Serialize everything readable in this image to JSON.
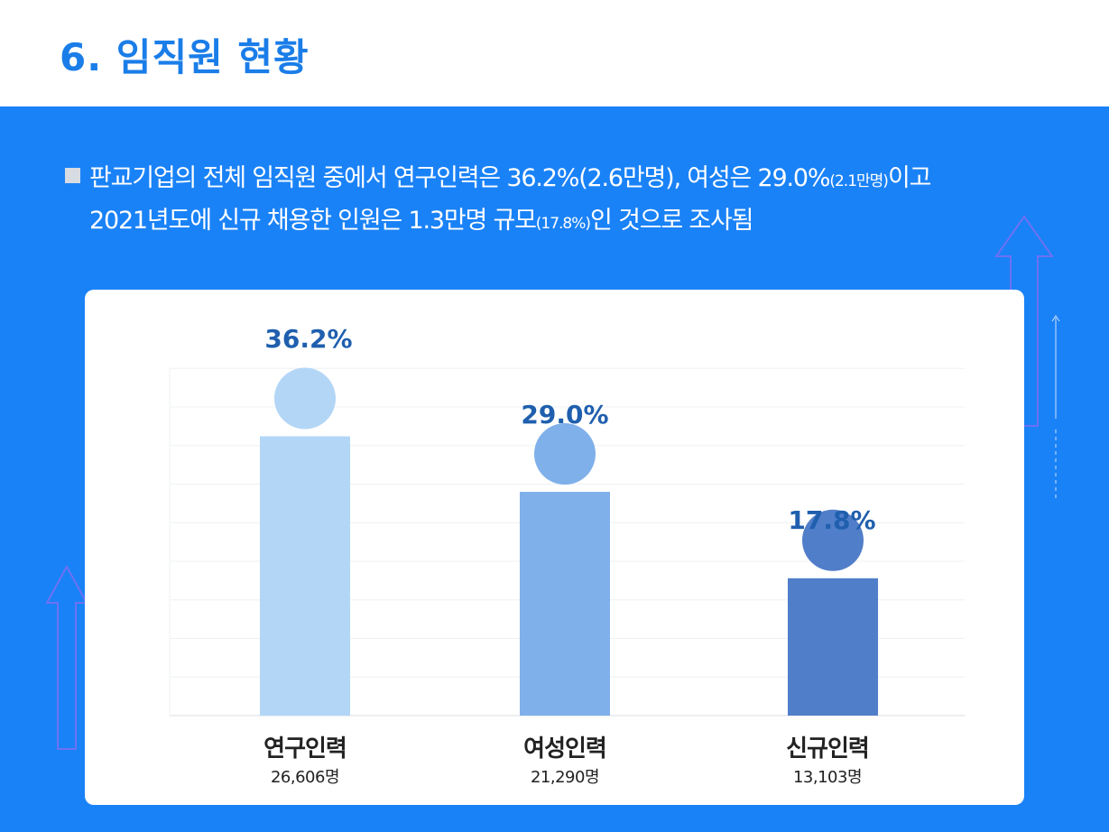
{
  "page": {
    "title": "6. 임직원 현황",
    "summary_line1_a": "판교기업의 전체 임직원 중에서 연구인력은 36.2%(2.6만명), 여성은 29.0%",
    "summary_line1_small": "(2.1만명)",
    "summary_line1_b": "이고",
    "summary_line2_a": "2021년도에 신규 채용한 인원은 1.3만명 규모",
    "summary_line2_small": "(17.8%)",
    "summary_line2_b": "인 것으로 조사됨"
  },
  "colors": {
    "panel": "#1a82f7",
    "title": "#1a7de8",
    "value_label": "#1f5fae"
  },
  "chart_data": {
    "type": "bar",
    "categories": [
      "연구인력",
      "여성인력",
      "신규인력"
    ],
    "values": [
      36.2,
      29.0,
      17.8
    ],
    "value_labels": [
      "36.2%",
      "29.0%",
      "17.8%"
    ],
    "counts": [
      "26,606명",
      "21,290명",
      "13,103명"
    ],
    "colors": [
      "#b3d6f6",
      "#7fb0ea",
      "#517ec9"
    ],
    "ylim": [
      0,
      45
    ],
    "grid": true
  }
}
